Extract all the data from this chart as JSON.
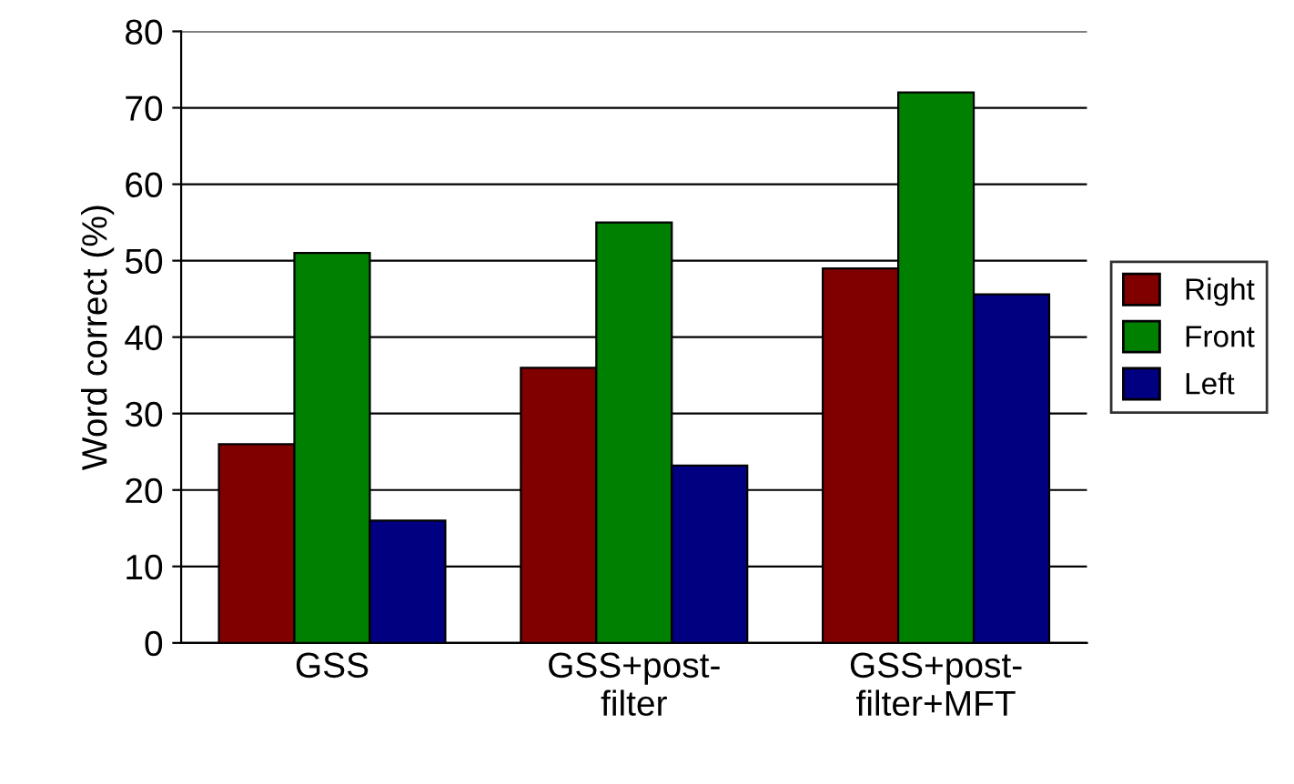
{
  "chart_data": {
    "type": "bar",
    "ylabel": "Word correct (%)",
    "categories": [
      "GSS",
      "GSS+post-\nfilter",
      "GSS+post-\nfilter+MFT"
    ],
    "series": [
      {
        "name": "Right",
        "color": "#800000",
        "values": [
          26,
          36,
          49
        ]
      },
      {
        "name": "Front",
        "color": "#008000",
        "values": [
          51,
          55,
          72
        ]
      },
      {
        "name": "Left",
        "color": "#000080",
        "values": [
          16,
          23.2,
          45.6
        ]
      }
    ],
    "ylim": [
      0,
      80
    ],
    "yticks": [
      0,
      10,
      20,
      30,
      40,
      50,
      60,
      70,
      80
    ],
    "grid": "y",
    "legend": "right"
  }
}
